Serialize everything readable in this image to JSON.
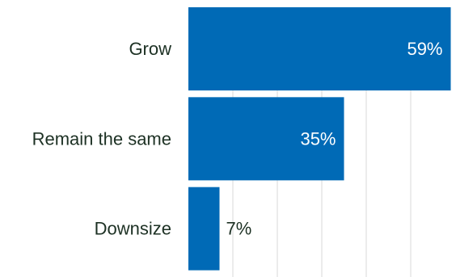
{
  "chart_data": {
    "type": "bar",
    "orientation": "horizontal",
    "categories": [
      "Grow",
      "Remain the same",
      "Downsize"
    ],
    "values": [
      59,
      35,
      7
    ],
    "value_labels": [
      "59%",
      "35%",
      "7%"
    ],
    "xlim": [
      0,
      60
    ],
    "grid": "vertical",
    "legend": "none",
    "bar_color": "#006ab6",
    "grid_color": "#d9d9d9",
    "label_color": "#1d3124"
  }
}
